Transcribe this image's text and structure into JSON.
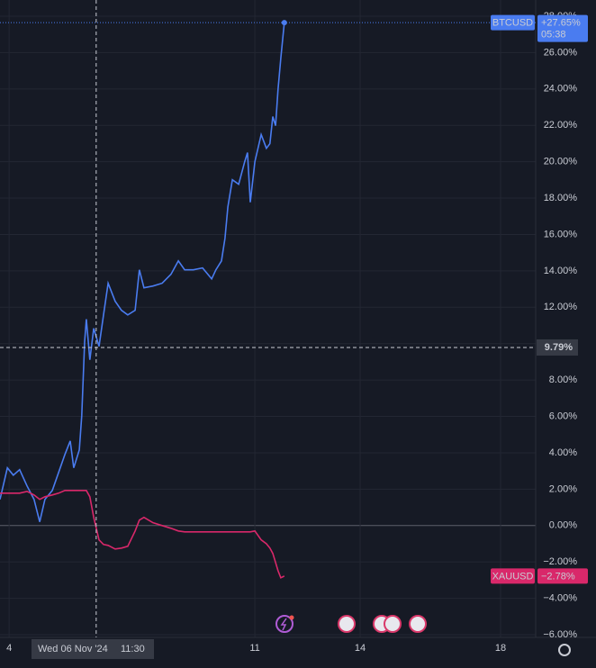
{
  "chart_data": {
    "type": "line",
    "x": [
      3.74,
      3.95,
      4.12,
      4.3,
      4.51,
      4.71,
      4.87,
      5.02,
      5.23,
      5.41,
      5.59,
      5.74,
      5.84,
      6.0,
      6.07,
      6.15,
      6.2,
      6.3,
      6.41,
      6.56,
      6.69,
      6.82,
      7.02,
      7.2,
      7.38,
      7.59,
      7.71,
      7.84,
      8.1,
      8.36,
      8.61,
      8.82,
      9.0,
      9.25,
      9.51,
      9.77,
      9.89,
      10.05,
      10.15,
      10.23,
      10.36,
      10.54,
      10.71,
      10.79,
      10.87,
      11.0,
      11.18,
      11.33,
      11.43,
      11.51,
      11.59,
      11.66,
      11.74,
      11.84
    ],
    "series": [
      {
        "name": "BTCUSD",
        "color": "#4a7cf0",
        "last_label": "+27.65%",
        "countdown": "05:38",
        "values": [
          1.44,
          3.17,
          2.77,
          3.07,
          2.18,
          1.44,
          0.2,
          1.44,
          1.93,
          2.92,
          3.91,
          4.65,
          3.17,
          4.16,
          6.04,
          10.1,
          11.34,
          9.11,
          10.84,
          9.85,
          11.58,
          13.32,
          12.33,
          11.83,
          11.58,
          11.83,
          14.06,
          13.07,
          13.17,
          13.32,
          13.81,
          14.55,
          14.06,
          14.06,
          14.16,
          13.56,
          14.06,
          14.55,
          15.79,
          17.52,
          19.01,
          18.76,
          20.0,
          20.5,
          17.77,
          20.0,
          21.49,
          20.74,
          20.99,
          22.48,
          21.98,
          23.96,
          25.69,
          27.65
        ]
      },
      {
        "name": "XAUUSD",
        "color": "#d9286a",
        "last_label": "−2.78%",
        "values": [
          1.78,
          1.78,
          1.78,
          1.78,
          1.88,
          1.68,
          1.44,
          1.58,
          1.68,
          1.78,
          1.93,
          1.93,
          1.93,
          1.93,
          1.93,
          1.93,
          1.93,
          1.58,
          0.45,
          -0.79,
          -1.04,
          -1.09,
          -1.29,
          -1.24,
          -1.14,
          -0.3,
          0.3,
          0.45,
          0.15,
          0.0,
          -0.15,
          -0.3,
          -0.35,
          -0.35,
          -0.35,
          -0.35,
          -0.35,
          -0.35,
          -0.35,
          -0.35,
          -0.35,
          -0.35,
          -0.35,
          -0.35,
          -0.35,
          -0.3,
          -0.79,
          -1.0,
          -1.24,
          -1.53,
          -2.03,
          -2.48,
          -2.87,
          -2.78
        ]
      }
    ],
    "xlim": [
      3.74,
      19.0
    ],
    "xticks": [
      4,
      11,
      14,
      18
    ],
    "ylim": [
      -6,
      28
    ],
    "yticks": [
      {
        "value": -6,
        "label": "−6.00%"
      },
      {
        "value": -4,
        "label": "−4.00%"
      },
      {
        "value": -2,
        "label": "−2.00%"
      },
      {
        "value": 0,
        "label": "0.00%"
      },
      {
        "value": 2,
        "label": "2.00%"
      },
      {
        "value": 4,
        "label": "4.00%"
      },
      {
        "value": 6,
        "label": "6.00%"
      },
      {
        "value": 8,
        "label": "8.00%"
      },
      {
        "value": 10,
        "label": "10.00%"
      },
      {
        "value": 12,
        "label": "12.00%"
      },
      {
        "value": 14,
        "label": "14.00%"
      },
      {
        "value": 16,
        "label": "16.00%"
      },
      {
        "value": 18,
        "label": "18.00%"
      },
      {
        "value": 20,
        "label": "20.00%"
      },
      {
        "value": 22,
        "label": "22.00%"
      },
      {
        "value": 24,
        "label": "24.00%"
      },
      {
        "value": 26,
        "label": "26.00%"
      },
      {
        "value": 28,
        "label": "28.00%"
      }
    ],
    "grid": true,
    "crosshair": {
      "x": 6.48,
      "x_label": "Wed 06 Nov '24",
      "time_label": "11:30",
      "y": 9.79,
      "y_label": "9.79%"
    }
  }
}
